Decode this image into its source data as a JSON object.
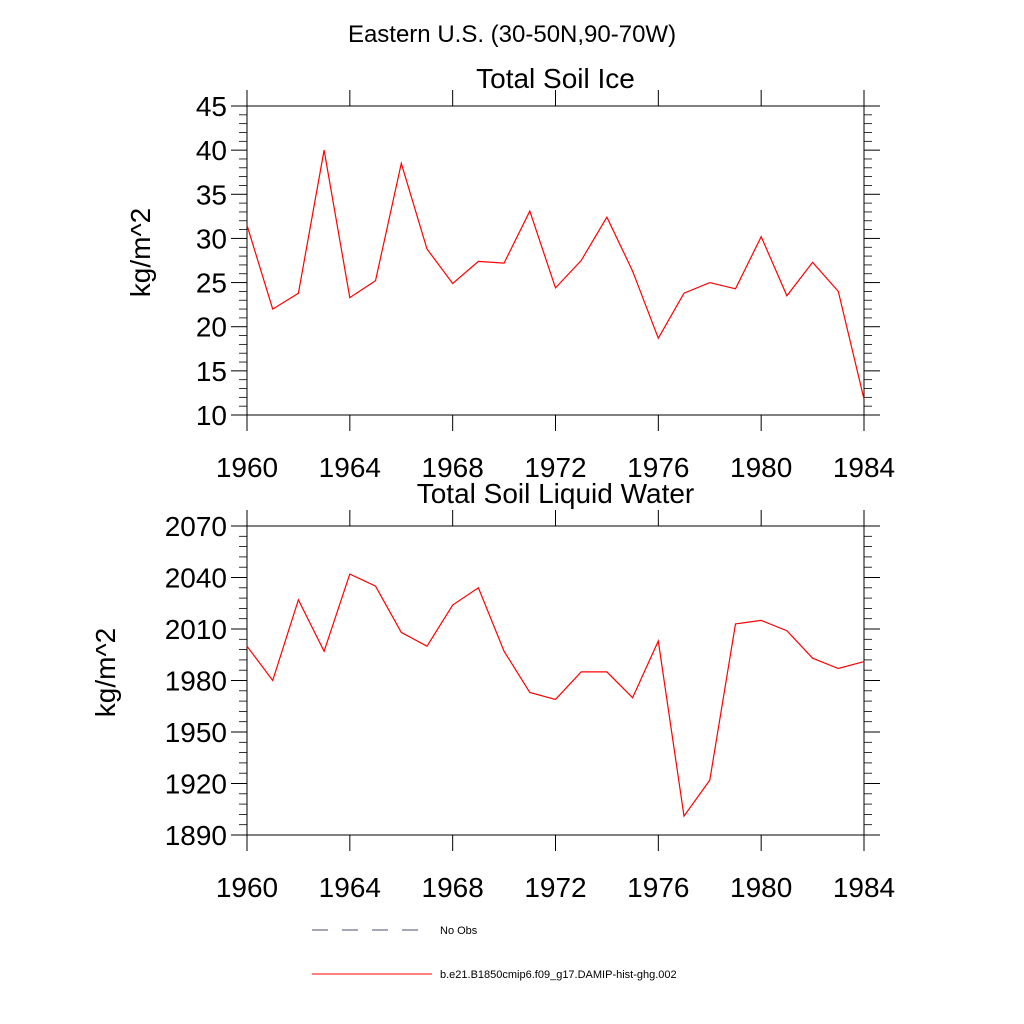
{
  "page_title": "Eastern U.S. (30-50N,90-70W)",
  "series_color": "#ff0000",
  "nobs_color": "#4a4f7a",
  "legend": [
    {
      "label": "No Obs",
      "style": "dashed",
      "color": "#4a4f7a"
    },
    {
      "label": "b.e21.B1850cmip6.f09_g17.DAMIP-hist-ghg.002",
      "style": "solid",
      "color": "#ff0000"
    }
  ],
  "chart_data": [
    {
      "type": "line",
      "title": "Total Soil Ice",
      "ylabel": "kg/m^2",
      "xlabel": "",
      "xlim": [
        1960,
        1984
      ],
      "ylim": [
        10,
        45
      ],
      "xticks": [
        1960,
        1964,
        1968,
        1972,
        1976,
        1980,
        1984
      ],
      "yticks": [
        10,
        15,
        20,
        25,
        30,
        35,
        40,
        45
      ],
      "x": [
        1960,
        1961,
        1962,
        1963,
        1964,
        1965,
        1966,
        1967,
        1968,
        1969,
        1970,
        1971,
        1972,
        1973,
        1974,
        1975,
        1976,
        1977,
        1978,
        1979,
        1980,
        1981,
        1982,
        1983,
        1984
      ],
      "series": [
        {
          "values": [
            31.5,
            22.0,
            23.8,
            40.0,
            23.3,
            25.2,
            38.5,
            28.8,
            24.9,
            27.4,
            27.2,
            33.1,
            24.4,
            27.5,
            32.4,
            26.3,
            18.7,
            23.8,
            25.0,
            24.3,
            30.2,
            23.5,
            27.3,
            24.0,
            11.8
          ]
        }
      ]
    },
    {
      "type": "line",
      "title": "Total Soil Liquid Water",
      "ylabel": "kg/m^2",
      "xlabel": "",
      "xlim": [
        1960,
        1984
      ],
      "ylim": [
        1890,
        2070
      ],
      "xticks": [
        1960,
        1964,
        1968,
        1972,
        1976,
        1980,
        1984
      ],
      "yticks": [
        1890,
        1920,
        1950,
        1980,
        2010,
        2040,
        2070
      ],
      "x": [
        1960,
        1961,
        1962,
        1963,
        1964,
        1965,
        1966,
        1967,
        1968,
        1969,
        1970,
        1971,
        1972,
        1973,
        1974,
        1975,
        1976,
        1977,
        1978,
        1979,
        1980,
        1981,
        1982,
        1983,
        1984
      ],
      "series": [
        {
          "values": [
            2000,
            1980,
            2027,
            1997,
            2042,
            2035,
            2008,
            2000,
            2024,
            2034,
            1997,
            1973,
            1969,
            1985,
            1985,
            1970,
            2003,
            1901,
            1922,
            2013,
            2015,
            2009,
            1993,
            1987,
            1991
          ]
        }
      ]
    }
  ]
}
